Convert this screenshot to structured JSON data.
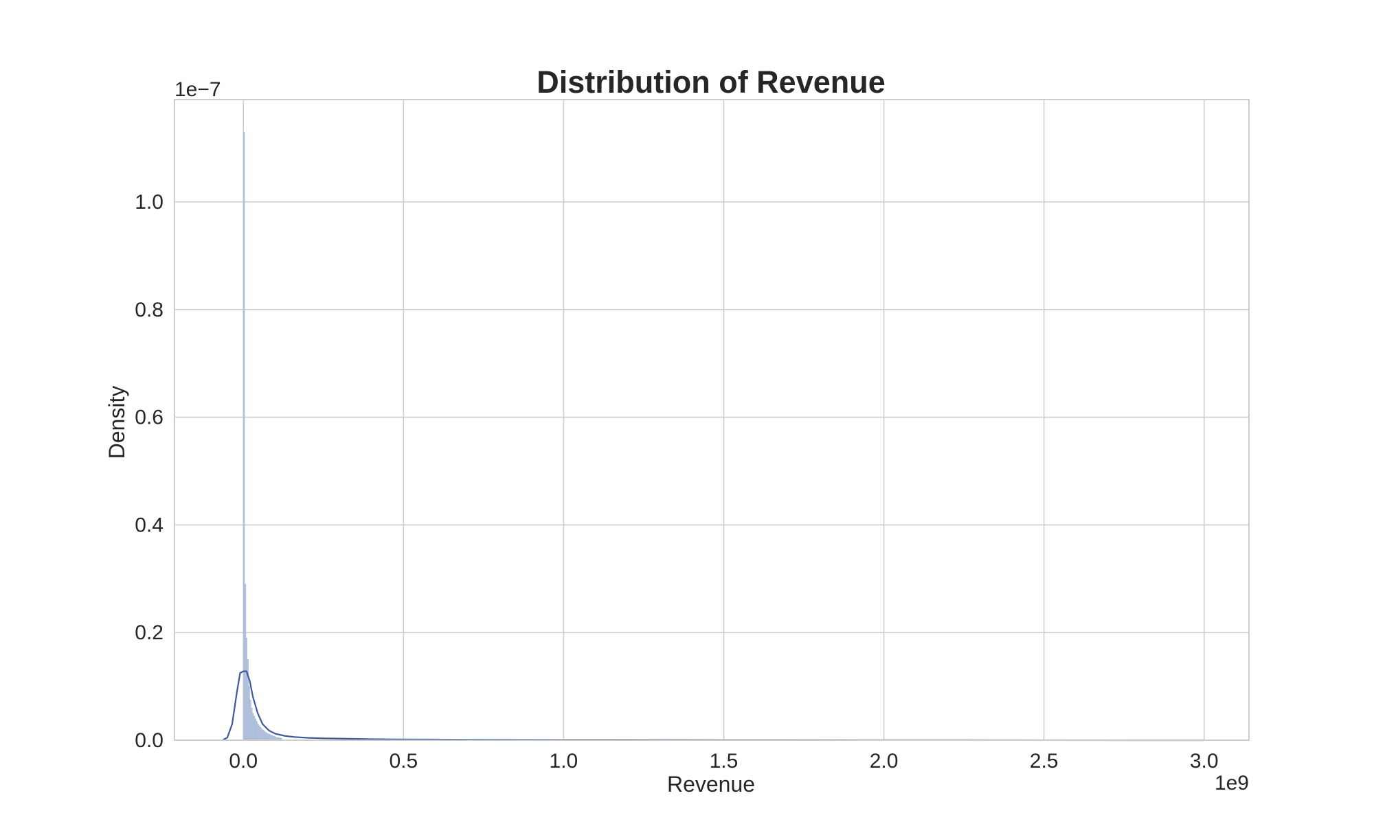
{
  "chart_data": {
    "type": "bar",
    "subtype": "histogram-with-kde",
    "title": "Distribution of Revenue",
    "xlabel": "Revenue",
    "ylabel": "Density",
    "x_offset_label": "1e9",
    "y_offset_label": "1e−7",
    "xlim": [
      -0.215,
      3.14
    ],
    "ylim": [
      0.0,
      1.19
    ],
    "xticks": [
      0.0,
      0.5,
      1.0,
      1.5,
      2.0,
      2.5,
      3.0
    ],
    "xtick_labels": [
      "0.0",
      "0.5",
      "1.0",
      "1.5",
      "2.0",
      "2.5",
      "3.0"
    ],
    "yticks": [
      0.0,
      0.2,
      0.4,
      0.6,
      0.8,
      1.0
    ],
    "ytick_labels": [
      "0.0",
      "0.2",
      "0.4",
      "0.6",
      "0.8",
      "1.0"
    ],
    "grid": true,
    "colors": {
      "bars": "#b4c3de",
      "kde": "#3a5a9c",
      "grid": "#cccccc"
    },
    "histogram": {
      "bin_width": 0.004,
      "bin_starts": [
        0.0,
        0.004,
        0.008,
        0.012,
        0.016,
        0.02,
        0.024,
        0.028,
        0.032,
        0.036,
        0.04,
        0.044,
        0.048,
        0.052,
        0.056,
        0.06,
        0.064,
        0.068,
        0.072,
        0.076,
        0.08,
        0.084,
        0.088,
        0.092,
        0.096,
        0.1,
        0.104,
        0.108,
        0.112,
        0.116
      ],
      "values": [
        1.13,
        0.29,
        0.19,
        0.15,
        0.1,
        0.075,
        0.06,
        0.05,
        0.045,
        0.04,
        0.035,
        0.03,
        0.027,
        0.024,
        0.021,
        0.019,
        0.017,
        0.015,
        0.013,
        0.012,
        0.011,
        0.01,
        0.009,
        0.008,
        0.007,
        0.006,
        0.005,
        0.005,
        0.004,
        0.004
      ]
    },
    "kde": {
      "x": [
        -0.065,
        -0.05,
        -0.035,
        -0.02,
        -0.01,
        0.0,
        0.01,
        0.02,
        0.03,
        0.045,
        0.06,
        0.08,
        0.1,
        0.13,
        0.16,
        0.2,
        0.25,
        0.3,
        0.4,
        0.5,
        0.7,
        1.0,
        1.5,
        2.0,
        2.5,
        3.0
      ],
      "y": [
        0.0,
        0.005,
        0.03,
        0.09,
        0.125,
        0.128,
        0.128,
        0.11,
        0.08,
        0.05,
        0.03,
        0.018,
        0.012,
        0.008,
        0.006,
        0.0045,
        0.0035,
        0.003,
        0.002,
        0.0015,
        0.001,
        0.0007,
        0.0004,
        0.0002,
        0.0001,
        0.0
      ]
    }
  }
}
